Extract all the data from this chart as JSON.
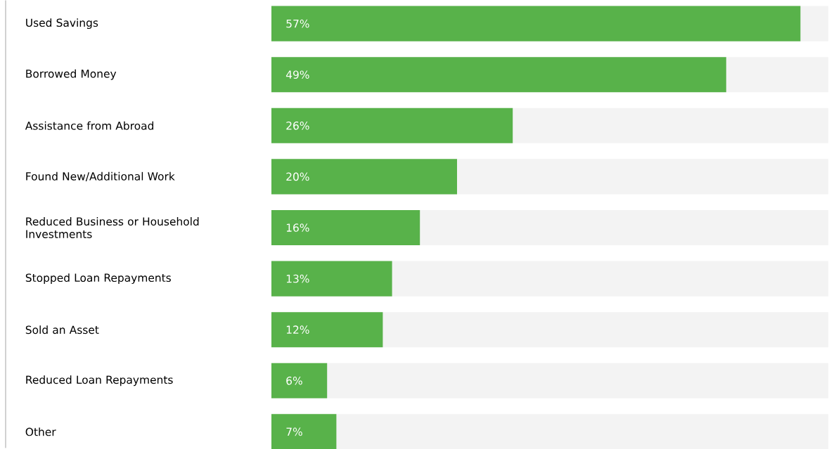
{
  "chart_data": {
    "type": "bar",
    "orientation": "horizontal",
    "categories": [
      "Used Savings",
      "Borrowed Money",
      "Assistance from Abroad",
      "Found New/Additional Work",
      "Reduced Business or Household Investments",
      "Stopped Loan Repayments",
      "Sold an Asset",
      "Reduced Loan Repayments",
      "Other"
    ],
    "values": [
      57,
      49,
      26,
      20,
      16,
      13,
      12,
      6,
      7
    ],
    "value_labels": [
      "57%",
      "49%",
      "26%",
      "20%",
      "16%",
      "13%",
      "12%",
      "6%",
      "7%"
    ],
    "color": "#58b24a",
    "xlim": [
      0,
      60
    ],
    "tick_labels": "y"
  }
}
